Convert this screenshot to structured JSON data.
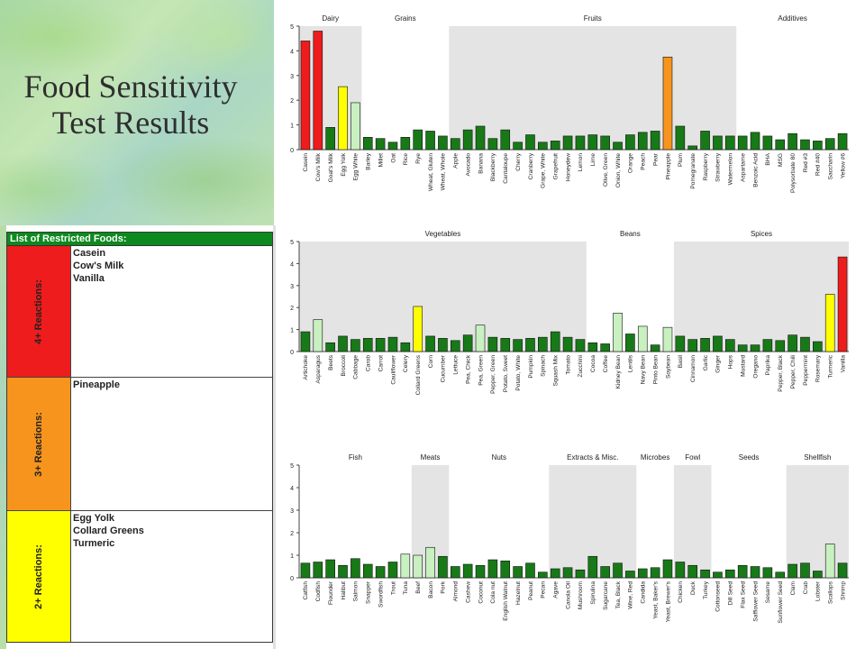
{
  "title": {
    "line1": "Food Sensitivity",
    "line2": "Test Results"
  },
  "restricted": {
    "header": "List of Restricted Foods:",
    "rows": [
      {
        "label": "4+ Reactions:",
        "color": "#ee1c1c",
        "foods": [
          "Casein",
          "Cow's Milk",
          "Vanilla"
        ]
      },
      {
        "label": "3+ Reactions:",
        "color": "#f7941d",
        "foods": [
          "Pineapple"
        ]
      },
      {
        "label": "2+ Reactions:",
        "color": "#ffff00",
        "foods": [
          "Egg Yolk",
          "Collard Greens",
          "Turmeric"
        ]
      }
    ]
  },
  "colors": {
    "green": "#177a17",
    "light": "#c8f0c0",
    "yellow": "#ffff00",
    "orange": "#f7941d",
    "red": "#ee1c1c",
    "shade": "#e4e4e4"
  },
  "chart_data": [
    {
      "type": "bar",
      "ylim": [
        0,
        5
      ],
      "yticks": [
        0,
        1,
        2,
        3,
        4,
        5
      ],
      "groups": [
        {
          "name": "Dairy",
          "shaded": true,
          "categories": [
            "Casein",
            "Cow's Milk",
            "Goat's Milk",
            "Egg Yolk",
            "Egg White"
          ],
          "values": [
            4.4,
            4.8,
            0.9,
            2.55,
            1.9
          ],
          "colors": [
            "red",
            "red",
            "green",
            "yellow",
            "light"
          ]
        },
        {
          "name": "Grains",
          "shaded": false,
          "categories": [
            "Barley",
            "Millet",
            "Oat",
            "Rice",
            "Rye",
            "Wheat, Gluten",
            "Wheat, Whole"
          ],
          "values": [
            0.5,
            0.45,
            0.3,
            0.5,
            0.8,
            0.75,
            0.55
          ],
          "colors": [
            "green",
            "green",
            "green",
            "green",
            "green",
            "green",
            "green"
          ]
        },
        {
          "name": "Fruits",
          "shaded": true,
          "categories": [
            "Apple",
            "Avocado",
            "Banana",
            "Blackberry",
            "Cantaloupe",
            "Cherry",
            "Cranberry",
            "Grape, White",
            "Grapefruit",
            "Honeydew",
            "Lemon",
            "Lime",
            "Olive, Green",
            "Onion, White",
            "Orange",
            "Peach",
            "Pear",
            "Pineapple",
            "Plum",
            "Pomegranate",
            "Raspberry",
            "Strawberry",
            "Watermelon"
          ],
          "values": [
            0.45,
            0.8,
            0.95,
            0.45,
            0.8,
            0.3,
            0.6,
            0.3,
            0.35,
            0.55,
            0.55,
            0.6,
            0.55,
            0.3,
            0.6,
            0.7,
            0.75,
            3.75,
            0.95,
            0.15,
            0.75,
            0.55,
            0.55
          ],
          "colors": [
            "green",
            "green",
            "green",
            "green",
            "green",
            "green",
            "green",
            "green",
            "green",
            "green",
            "green",
            "green",
            "green",
            "green",
            "green",
            "green",
            "green",
            "orange",
            "green",
            "green",
            "green",
            "green",
            "green"
          ]
        },
        {
          "name": "Additives",
          "shaded": false,
          "categories": [
            "Aspartame",
            "Benzoic Acid",
            "BHA",
            "MSG",
            "Polysorbate 80",
            "Red #3",
            "Red #40",
            "Saccharin",
            "Yellow #6"
          ],
          "values": [
            0.55,
            0.7,
            0.55,
            0.4,
            0.65,
            0.4,
            0.35,
            0.45,
            0.65
          ],
          "colors": [
            "green",
            "green",
            "green",
            "green",
            "green",
            "green",
            "green",
            "green",
            "green"
          ]
        }
      ]
    },
    {
      "type": "bar",
      "ylim": [
        0,
        5
      ],
      "yticks": [
        0,
        1,
        2,
        3,
        4,
        5
      ],
      "groups": [
        {
          "name": "Vegetables",
          "shaded": true,
          "categories": [
            "Artichoke",
            "Asparagus",
            "Beets",
            "Broccoli",
            "Cabbage",
            "Carob",
            "Carrot",
            "Cauliflower",
            "Celery",
            "Collard Greens",
            "Corn",
            "Cucumber",
            "Lettuce",
            "Pea, Chick",
            "Pea, Green",
            "Pepper, Green",
            "Potato, Sweet",
            "Potato, White",
            "Pumpkin",
            "Spinach",
            "Squash Mix",
            "Tomato",
            "Zucchini"
          ],
          "values": [
            0.9,
            1.45,
            0.4,
            0.7,
            0.55,
            0.6,
            0.6,
            0.65,
            0.4,
            2.05,
            0.7,
            0.6,
            0.5,
            0.75,
            1.2,
            0.65,
            0.6,
            0.55,
            0.6,
            0.65,
            0.9,
            0.65,
            0.55
          ],
          "colors": [
            "green",
            "light",
            "green",
            "green",
            "green",
            "green",
            "green",
            "green",
            "green",
            "yellow",
            "green",
            "green",
            "green",
            "green",
            "light",
            "green",
            "green",
            "green",
            "green",
            "green",
            "green",
            "green",
            "green"
          ]
        },
        {
          "name": "Beans",
          "shaded": false,
          "categories": [
            "Cocoa",
            "Coffee",
            "Kidney Bean",
            "Lentils",
            "Navy Bean",
            "Pinto Bean",
            "Soybean"
          ],
          "values": [
            0.4,
            0.35,
            1.75,
            0.8,
            1.15,
            0.3,
            1.1
          ],
          "colors": [
            "green",
            "green",
            "light",
            "green",
            "light",
            "green",
            "light"
          ]
        },
        {
          "name": "Spices",
          "shaded": true,
          "categories": [
            "Basil",
            "Cinnamon",
            "Garlic",
            "Ginger",
            "Hops",
            "Mustard",
            "Oregano",
            "Paprika",
            "Pepper, Black",
            "Pepper, Chili",
            "Peppermint",
            "Rosemary",
            "Turmeric",
            "Vanilla"
          ],
          "values": [
            0.7,
            0.55,
            0.6,
            0.7,
            0.55,
            0.3,
            0.3,
            0.55,
            0.5,
            0.75,
            0.65,
            0.45,
            2.6,
            4.3
          ],
          "colors": [
            "green",
            "green",
            "green",
            "green",
            "green",
            "green",
            "green",
            "green",
            "green",
            "green",
            "green",
            "green",
            "yellow",
            "red"
          ]
        }
      ]
    },
    {
      "type": "bar",
      "ylim": [
        0,
        5
      ],
      "yticks": [
        0,
        1,
        2,
        3,
        4,
        5
      ],
      "groups": [
        {
          "name": "Fish",
          "shaded": false,
          "categories": [
            "Catfish",
            "Codfish",
            "Flounder",
            "Halibut",
            "Salmon",
            "Snapper",
            "Swordfish",
            "Trout",
            "Tuna"
          ],
          "values": [
            0.65,
            0.7,
            0.8,
            0.55,
            0.85,
            0.6,
            0.5,
            0.7,
            1.05
          ],
          "colors": [
            "green",
            "green",
            "green",
            "green",
            "green",
            "green",
            "green",
            "green",
            "light"
          ]
        },
        {
          "name": "Meats",
          "shaded": true,
          "categories": [
            "Beef",
            "Bacon",
            "Pork"
          ],
          "values": [
            1.0,
            1.35,
            0.95
          ],
          "colors": [
            "light",
            "light",
            "green"
          ]
        },
        {
          "name": "Nuts",
          "shaded": false,
          "categories": [
            "Almond",
            "Cashew",
            "Coconut",
            "Cola nut",
            "English Walnut",
            "Hazelnut",
            "Peanut",
            "Pecan"
          ],
          "values": [
            0.5,
            0.6,
            0.55,
            0.8,
            0.75,
            0.5,
            0.65,
            0.25
          ],
          "colors": [
            "green",
            "green",
            "green",
            "green",
            "green",
            "green",
            "green",
            "green"
          ]
        },
        {
          "name": "Extracts & Misc.",
          "shaded": true,
          "categories": [
            "Agave",
            "Canola Oil",
            "Mushroom",
            "Spirulina",
            "Sugarcane",
            "Tea, Black",
            "Wine, Red"
          ],
          "values": [
            0.4,
            0.45,
            0.35,
            0.95,
            0.5,
            0.65,
            0.3
          ],
          "colors": [
            "green",
            "green",
            "green",
            "green",
            "green",
            "green",
            "green"
          ]
        },
        {
          "name": "Microbes",
          "shaded": false,
          "categories": [
            "Candida",
            "Yeast, Baker's",
            "Yeast, Brewer's"
          ],
          "values": [
            0.4,
            0.45,
            0.8
          ],
          "colors": [
            "green",
            "green",
            "green"
          ]
        },
        {
          "name": "Fowl",
          "shaded": true,
          "categories": [
            "Chicken",
            "Duck",
            "Turkey"
          ],
          "values": [
            0.7,
            0.55,
            0.35
          ],
          "colors": [
            "green",
            "green",
            "green"
          ]
        },
        {
          "name": "Seeds",
          "shaded": false,
          "categories": [
            "Cottonseed",
            "Dill Seed",
            "Flax Seed",
            "Safflower Seed",
            "Sesame",
            "Sunflower Seed"
          ],
          "values": [
            0.25,
            0.35,
            0.55,
            0.5,
            0.45,
            0.25
          ],
          "colors": [
            "green",
            "green",
            "green",
            "green",
            "green",
            "green"
          ]
        },
        {
          "name": "Shellfish",
          "shaded": true,
          "categories": [
            "Clam",
            "Crab",
            "Lobster",
            "Scallops",
            "Shrimp"
          ],
          "values": [
            0.6,
            0.65,
            0.3,
            1.5,
            0.65
          ],
          "colors": [
            "green",
            "green",
            "green",
            "light",
            "green"
          ]
        }
      ]
    }
  ]
}
